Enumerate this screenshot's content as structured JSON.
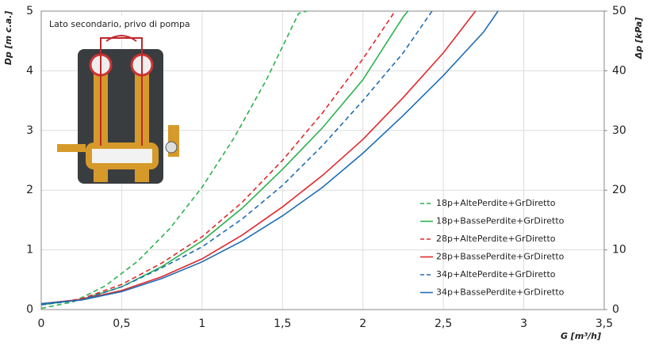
{
  "chart_data": {
    "type": "line",
    "annotation": "Lato secondario, privo di pompa",
    "x_label": "G [m³/h]",
    "y_label": "Dp [m c.a.]",
    "y2_label": "Δp [kPa]",
    "xlim": [
      0,
      3.5
    ],
    "xticks": [
      0,
      {
        "value": 0.5,
        "label": "0,5"
      },
      1,
      {
        "value": 1.5,
        "label": "1,5"
      },
      2,
      {
        "value": 2.5,
        "label": "2,5"
      },
      3,
      {
        "value": 3.5,
        "label": "3,5"
      }
    ],
    "ylim": [
      0,
      5
    ],
    "yticks": [
      0,
      1,
      2,
      3,
      4,
      5
    ],
    "y2lim": [
      0,
      50
    ],
    "y2ticks": [
      0,
      10,
      20,
      30,
      40,
      50
    ],
    "grid": true,
    "legend": "bottom-right",
    "series": [
      {
        "name": "18p+AltePerdite+GrDiretto",
        "color": "#2bb24c",
        "dash": true,
        "x": [
          0,
          0.2,
          0.4,
          0.6,
          0.8,
          1,
          1.2,
          1.4,
          1.6,
          1.65
        ],
        "values": [
          0.02,
          0.13,
          0.4,
          0.81,
          1.36,
          2.05,
          2.88,
          3.85,
          4.96,
          5
        ]
      },
      {
        "name": "18p+BassePerdite+GrDiretto",
        "color": "#2bb24c",
        "dash": false,
        "x": [
          0,
          0.25,
          0.5,
          0.75,
          1,
          1.25,
          1.5,
          1.75,
          2,
          2.25,
          2.28
        ],
        "values": [
          0.08,
          0.17,
          0.38,
          0.72,
          1.15,
          1.7,
          2.35,
          3.05,
          3.85,
          4.9,
          5
        ]
      },
      {
        "name": "28p+AltePerdite+GrDiretto",
        "color": "#e2282c",
        "dash": true,
        "x": [
          0,
          0.25,
          0.5,
          0.75,
          1,
          1.25,
          1.5,
          1.75,
          2,
          2.2
        ],
        "values": [
          0.08,
          0.18,
          0.42,
          0.78,
          1.22,
          1.8,
          2.5,
          3.3,
          4.2,
          5
        ]
      },
      {
        "name": "28p+BassePerdite+GrDiretto",
        "color": "#e2282c",
        "dash": false,
        "x": [
          0,
          0.25,
          0.5,
          0.75,
          1,
          1.25,
          1.5,
          1.75,
          2,
          2.25,
          2.5,
          2.7
        ],
        "values": [
          0.1,
          0.17,
          0.32,
          0.55,
          0.85,
          1.25,
          1.72,
          2.25,
          2.85,
          3.55,
          4.3,
          5
        ]
      },
      {
        "name": "34p+AltePerdite+GrDiretto",
        "color": "#1f6db5",
        "dash": true,
        "x": [
          0,
          0.25,
          0.5,
          0.75,
          1,
          1.25,
          1.5,
          1.75,
          2,
          2.25,
          2.43
        ],
        "values": [
          0.08,
          0.16,
          0.38,
          0.7,
          1.05,
          1.52,
          2.08,
          2.75,
          3.5,
          4.3,
          5
        ]
      },
      {
        "name": "34p+BassePerdite+GrDiretto",
        "color": "#1f6db5",
        "dash": false,
        "x": [
          0,
          0.25,
          0.5,
          0.75,
          1,
          1.25,
          1.5,
          1.75,
          2,
          2.25,
          2.5,
          2.75,
          2.84
        ],
        "values": [
          0.1,
          0.16,
          0.3,
          0.52,
          0.8,
          1.15,
          1.57,
          2.05,
          2.62,
          3.25,
          3.92,
          4.65,
          5
        ]
      }
    ]
  }
}
